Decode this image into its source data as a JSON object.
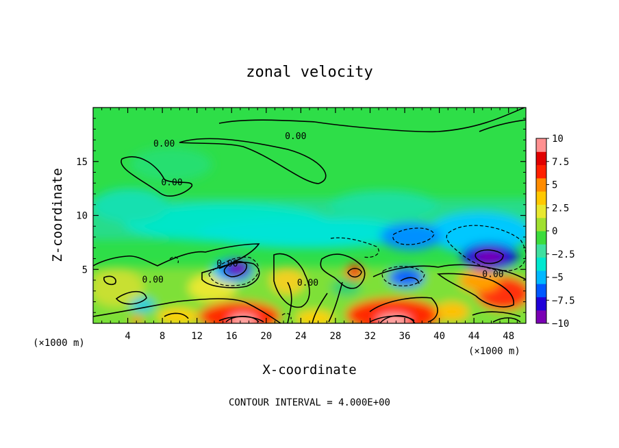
{
  "chart_data": {
    "type": "heatmap",
    "title": "zonal velocity",
    "xlabel": "X-coordinate",
    "ylabel": "Z-coordinate",
    "x_unit": "(×1000 m)",
    "x_unit_right": "(×1000 m)",
    "footer": "CONTOUR INTERVAL = 4.000E+00",
    "xlim": [
      0,
      50
    ],
    "ylim": [
      0,
      20
    ],
    "x_ticks": [
      4,
      8,
      12,
      16,
      20,
      24,
      28,
      32,
      36,
      40,
      44,
      48
    ],
    "y_ticks": [
      5,
      10,
      15
    ],
    "colorbar": {
      "range": [
        -10,
        10
      ],
      "tick_labels": [
        "10",
        "7.5",
        "5",
        "2.5",
        "0",
        "-2.5",
        "-5",
        "-7.5",
        "-10"
      ],
      "colors": [
        "#7a00b4",
        "#2000d8",
        "#0058ff",
        "#00b8ff",
        "#00e8d0",
        "#40e0a0",
        "#3cdc3c",
        "#a0e030",
        "#e8e830",
        "#ffc800",
        "#ff8c00",
        "#ff2000",
        "#e00000",
        "#ff9090"
      ]
    },
    "contour_labels": [
      {
        "text": "0.00",
        "x": 8.2,
        "z": 16.7
      },
      {
        "text": "0.00",
        "x": 23.4,
        "z": 17.4
      },
      {
        "text": "0.00",
        "x": 9.1,
        "z": 13.1
      },
      {
        "text": "0.00",
        "x": 15.5,
        "z": 5.6
      },
      {
        "text": "0.00",
        "x": 6.9,
        "z": 4.1
      },
      {
        "text": "0.00",
        "x": 24.8,
        "z": 3.8
      },
      {
        "text": "0.00",
        "x": 46.2,
        "z": 4.6
      }
    ],
    "extrema": [
      {
        "x": 17.3,
        "z": 5.1,
        "value": -10
      },
      {
        "x": 45.8,
        "z": 6.1,
        "value": -10
      },
      {
        "x": 34.2,
        "z": 4.1,
        "value": -6
      },
      {
        "x": 30.2,
        "z": 4.6,
        "value": 6
      },
      {
        "x": 17.3,
        "z": 0.4,
        "value": 10
      },
      {
        "x": 34.8,
        "z": 0.6,
        "value": 10
      },
      {
        "x": 47.0,
        "z": 2.7,
        "value": 8
      },
      {
        "x": 23.0,
        "z": 5.0,
        "value": 4
      },
      {
        "x": 5.0,
        "z": 1.5,
        "value": 3
      }
    ]
  }
}
